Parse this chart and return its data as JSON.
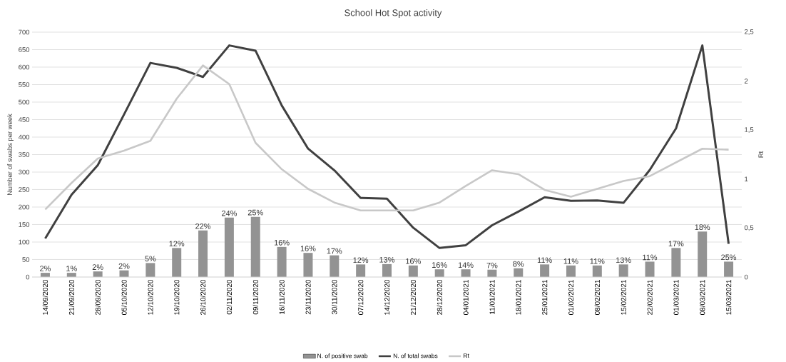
{
  "chart_data": {
    "type": "bar",
    "title": "School Hot Spot activity",
    "ylabel": "Number of swabs per week",
    "y2label": "Rt",
    "categories": [
      "14/09/2020",
      "21/09/2020",
      "28/09/2020",
      "05/10/2020",
      "12/10/2020",
      "19/10/2020",
      "26/10/2020",
      "02/11/2020",
      "09/11/2020",
      "16/11/2020",
      "23/11/2020",
      "30/11/2020",
      "07/12/2020",
      "14/12/2020",
      "21/12/2020",
      "28/12/2020",
      "04/01/2021",
      "11/01/2021",
      "18/01/2021",
      "25/01/2021",
      "01/02/2021",
      "08/02/2021",
      "15/02/2021",
      "22/02/2021",
      "01/03/2021",
      "08/03/2021",
      "15/03/2021"
    ],
    "series": [
      {
        "name": "N. of positive swab",
        "color": "#939393",
        "values": [
          12,
          12,
          16,
          19,
          40,
          83,
          133,
          170,
          172,
          86,
          69,
          62,
          36,
          37,
          33,
          22,
          22,
          21,
          25,
          36,
          33,
          33,
          36,
          44,
          83,
          130,
          44
        ]
      },
      {
        "name": "N. of total swabs",
        "type": "line",
        "color": "#404040",
        "values": [
          110,
          235,
          320,
          465,
          612,
          598,
          572,
          662,
          647,
          490,
          367,
          305,
          226,
          224,
          141,
          83,
          91,
          148,
          187,
          228,
          218,
          219,
          212,
          306,
          425,
          662,
          95
        ]
      },
      {
        "name": "Rt",
        "type": "line",
        "axis": "y2",
        "color": "#c8c8c8",
        "values": [
          0.69,
          0.96,
          1.21,
          1.29,
          1.39,
          1.82,
          2.16,
          1.97,
          1.37,
          1.1,
          0.9,
          0.76,
          0.68,
          0.68,
          0.68,
          0.76,
          0.93,
          1.09,
          1.05,
          0.89,
          0.82,
          0.9,
          0.98,
          1.03,
          1.17,
          1.31,
          1.3
        ]
      }
    ],
    "ylim": [
      0,
      700
    ],
    "yticks": [
      0,
      50,
      100,
      150,
      200,
      250,
      300,
      350,
      400,
      450,
      500,
      550,
      600,
      650,
      700
    ],
    "y2lim": [
      0,
      2.5
    ],
    "y2ticks": [
      0,
      {
        "value": 0.5,
        "label": "0,5"
      },
      1,
      {
        "value": 1.5,
        "label": "1,5"
      },
      2,
      {
        "value": 2.5,
        "label": "2,5"
      }
    ],
    "grid": "y",
    "legend": "bottom",
    "annotations": [
      {
        "text": "2%",
        "x": "14/09/2020",
        "y": 12
      },
      {
        "text": "1%",
        "x": "21/09/2020",
        "y": 12
      },
      {
        "text": "2%",
        "x": "28/09/2020",
        "y": 16
      },
      {
        "text": "2%",
        "x": "05/10/2020",
        "y": 19
      },
      {
        "text": "5%",
        "x": "12/10/2020",
        "y": 40
      },
      {
        "text": "12%",
        "x": "19/10/2020",
        "y": 83
      },
      {
        "text": "22%",
        "x": "26/10/2020",
        "y": 133
      },
      {
        "text": "24%",
        "x": "02/11/2020",
        "y": 170
      },
      {
        "text": "25%",
        "x": "09/11/2020",
        "y": 172
      },
      {
        "text": "16%",
        "x": "16/11/2020",
        "y": 86
      },
      {
        "text": "16%",
        "x": "23/11/2020",
        "y": 69
      },
      {
        "text": "17%",
        "x": "30/11/2020",
        "y": 62
      },
      {
        "text": "12%",
        "x": "07/12/2020",
        "y": 36
      },
      {
        "text": "13%",
        "x": "14/12/2020",
        "y": 37
      },
      {
        "text": "16%",
        "x": "21/12/2020",
        "y": 33
      },
      {
        "text": "16%",
        "x": "28/12/2020",
        "y": 22
      },
      {
        "text": "14%",
        "x": "04/01/2021",
        "y": 22
      },
      {
        "text": "7%",
        "x": "11/01/2021",
        "y": 21
      },
      {
        "text": "8%",
        "x": "18/01/2021",
        "y": 25
      },
      {
        "text": "11%",
        "x": "25/01/2021",
        "y": 36
      },
      {
        "text": "11%",
        "x": "01/02/2021",
        "y": 33
      },
      {
        "text": "11%",
        "x": "08/02/2021",
        "y": 33
      },
      {
        "text": "13%",
        "x": "15/02/2021",
        "y": 36
      },
      {
        "text": "11%",
        "x": "22/02/2021",
        "y": 44
      },
      {
        "text": "17%",
        "x": "01/03/2021",
        "y": 83
      },
      {
        "text": "18%",
        "x": "08/03/2021",
        "y": 130
      },
      {
        "text": "25%",
        "x": "15/03/2021",
        "y": 44
      }
    ]
  }
}
